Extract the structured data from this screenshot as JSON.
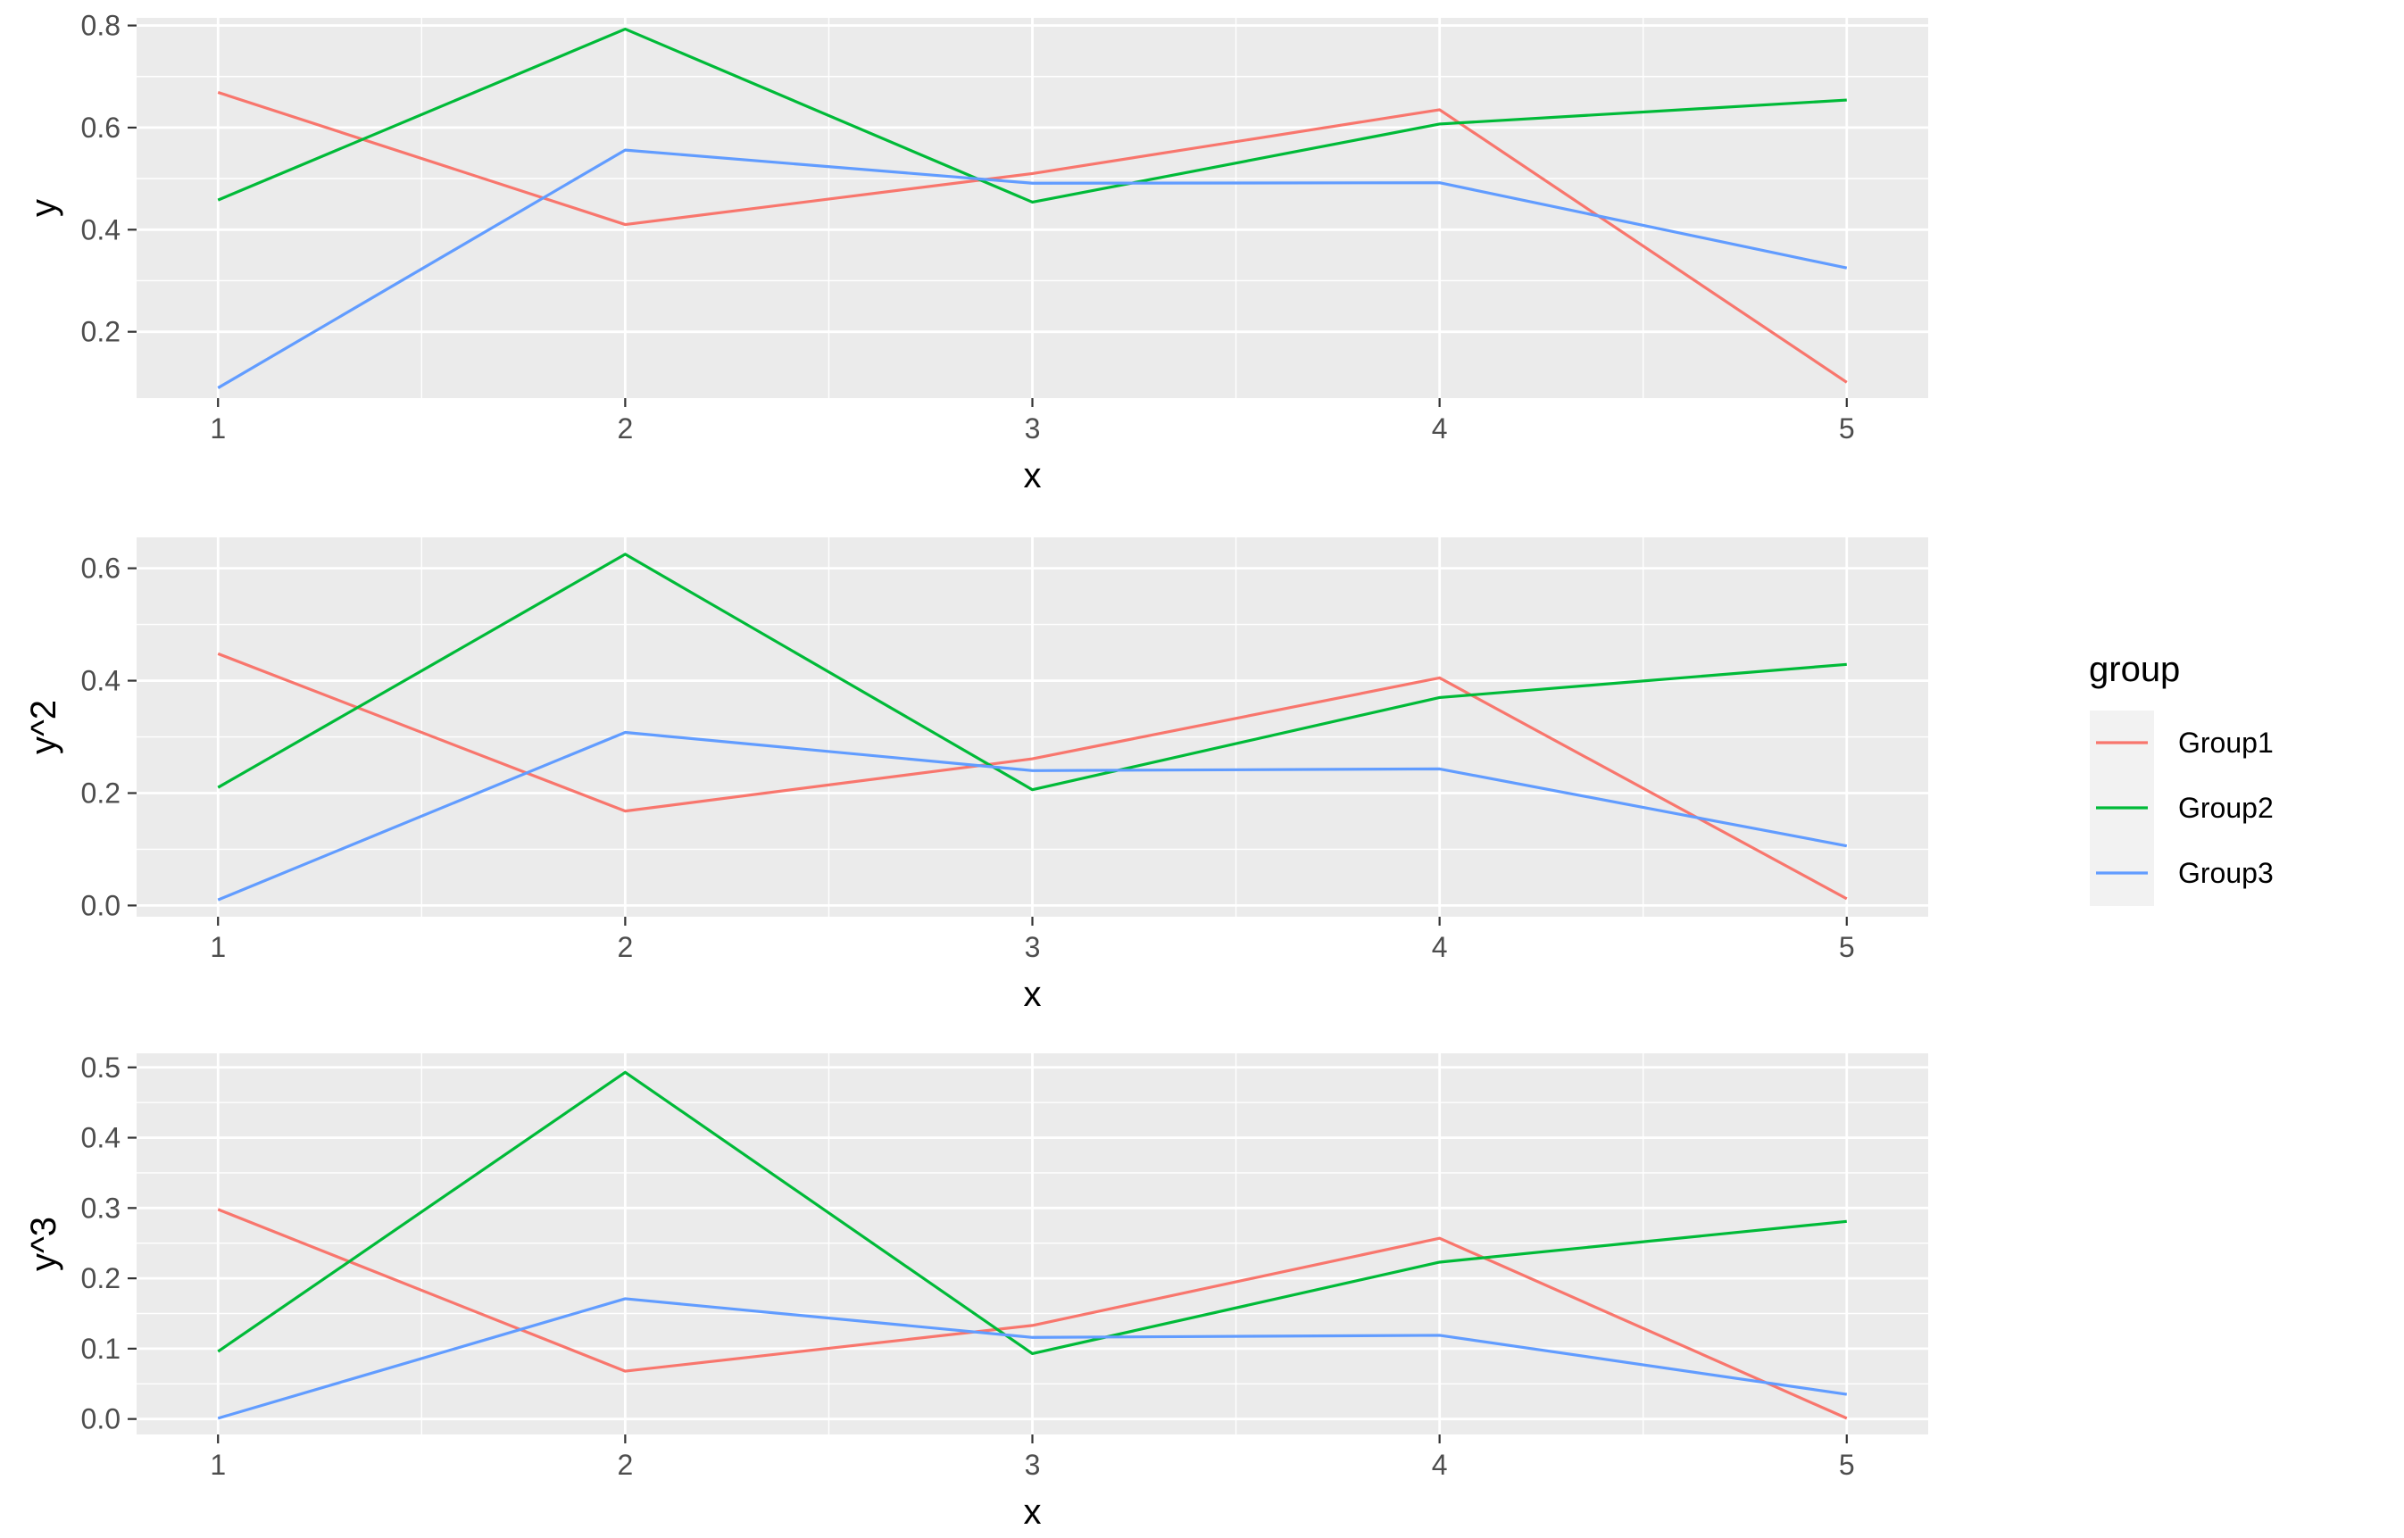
{
  "chart_data": [
    {
      "type": "line",
      "xlabel": "x",
      "ylabel": "y",
      "x": [
        1,
        2,
        3,
        4,
        5
      ],
      "xticks": [
        "1",
        "2",
        "3",
        "4",
        "5"
      ],
      "yticks": [
        "0.2",
        "0.4",
        "0.6",
        "0.8"
      ],
      "xlim": [
        0.8,
        5.2
      ],
      "ylim": [
        0.07,
        0.815
      ],
      "grid": true,
      "series": [
        {
          "name": "Group1",
          "color": "#F8766D",
          "values": [
            0.669,
            0.41,
            0.51,
            0.635,
            0.101
          ]
        },
        {
          "name": "Group2",
          "color": "#00BA38",
          "values": [
            0.458,
            0.793,
            0.454,
            0.607,
            0.654
          ]
        },
        {
          "name": "Group3",
          "color": "#619CFF",
          "values": [
            0.09,
            0.556,
            0.491,
            0.492,
            0.325
          ]
        }
      ]
    },
    {
      "type": "line",
      "xlabel": "x",
      "ylabel": "y^2",
      "x": [
        1,
        2,
        3,
        4,
        5
      ],
      "xticks": [
        "1",
        "2",
        "3",
        "4",
        "5"
      ],
      "yticks": [
        "0.0",
        "0.2",
        "0.4",
        "0.6"
      ],
      "xlim": [
        0.8,
        5.2
      ],
      "ylim": [
        -0.02,
        0.655
      ],
      "grid": true,
      "series": [
        {
          "name": "Group1",
          "color": "#F8766D",
          "values": [
            0.448,
            0.168,
            0.261,
            0.405,
            0.012
          ]
        },
        {
          "name": "Group2",
          "color": "#00BA38",
          "values": [
            0.21,
            0.625,
            0.206,
            0.37,
            0.429
          ]
        },
        {
          "name": "Group3",
          "color": "#619CFF",
          "values": [
            0.01,
            0.308,
            0.24,
            0.243,
            0.106
          ]
        }
      ]
    },
    {
      "type": "line",
      "xlabel": "x",
      "ylabel": "y^3",
      "x": [
        1,
        2,
        3,
        4,
        5
      ],
      "xticks": [
        "1",
        "2",
        "3",
        "4",
        "5"
      ],
      "yticks": [
        "0.0",
        "0.1",
        "0.2",
        "0.3",
        "0.4",
        "0.5"
      ],
      "xlim": [
        0.8,
        5.2
      ],
      "ylim": [
        -0.022,
        0.52
      ],
      "grid": true,
      "series": [
        {
          "name": "Group1",
          "color": "#F8766D",
          "values": [
            0.298,
            0.068,
            0.133,
            0.257,
            0.001
          ]
        },
        {
          "name": "Group2",
          "color": "#00BA38",
          "values": [
            0.096,
            0.493,
            0.093,
            0.223,
            0.281
          ]
        },
        {
          "name": "Group3",
          "color": "#619CFF",
          "values": [
            0.001,
            0.171,
            0.116,
            0.119,
            0.035
          ]
        }
      ]
    }
  ],
  "legend": {
    "title": "group",
    "position": "right",
    "items": [
      {
        "label": "Group1",
        "color": "#F8766D"
      },
      {
        "label": "Group2",
        "color": "#00BA38"
      },
      {
        "label": "Group3",
        "color": "#619CFF"
      }
    ]
  }
}
